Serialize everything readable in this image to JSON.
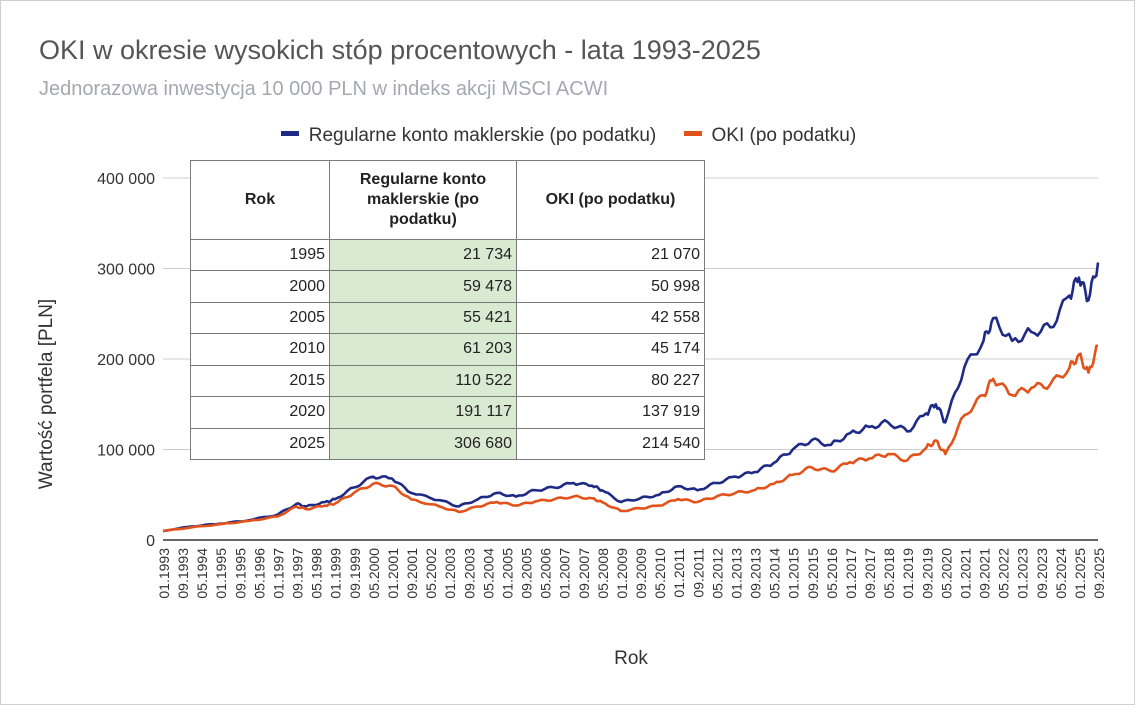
{
  "chart_data": {
    "type": "line",
    "title": "OKI w okresie wysokich stóp procentowych - lata 1993-2025",
    "subtitle": "Jednorazowa inwestycja 10 000 PLN w indeks akcji MSCI ACWI",
    "xlabel": "Rok",
    "ylabel": "Wartość portfela [PLN]",
    "ylim": [
      0,
      400000
    ],
    "y_ticks": [
      0,
      100000,
      200000,
      300000,
      400000
    ],
    "y_tick_labels": [
      "0",
      "100 000",
      "200 000",
      "300 000",
      "400 000"
    ],
    "x_tick_labels": [
      "01.1993",
      "09.1993",
      "05.1994",
      "01.1995",
      "09.1995",
      "05.1996",
      "01.1997",
      "09.1997",
      "05.1998",
      "01.1999",
      "09.1999",
      "05.2000",
      "01.2001",
      "09.2001",
      "05.2002",
      "01.2003",
      "09.2003",
      "05.2004",
      "01.2005",
      "09.2005",
      "05.2006",
      "01.2007",
      "09.2007",
      "05.2008",
      "01.2009",
      "09.2009",
      "05.2010",
      "01.2011",
      "09.2011",
      "05.2012",
      "01.2013",
      "09.2013",
      "05.2014",
      "01.2015",
      "09.2015",
      "05.2016",
      "01.2017",
      "09.2017",
      "05.2018",
      "01.2019",
      "09.2019",
      "05.2020",
      "01.2021",
      "09.2021",
      "05.2022",
      "01.2023",
      "09.2023",
      "05.2024",
      "01.2025",
      "09.2025"
    ],
    "grid": true,
    "legend_position": "top",
    "colors": {
      "regular": "#1f2a85",
      "oki": "#e2531c"
    },
    "series": [
      {
        "name": "Regularne konto maklerskie (po podatku)",
        "color": "#1f2a85",
        "points": [
          [
            "01.1993",
            10000
          ],
          [
            "01.1994",
            15000
          ],
          [
            "01.1995",
            18000
          ],
          [
            "01.1996",
            21734
          ],
          [
            "01.1997",
            28000
          ],
          [
            "09.1997",
            40000
          ],
          [
            "01.1998",
            37000
          ],
          [
            "09.1998",
            42000
          ],
          [
            "01.1999",
            45000
          ],
          [
            "09.1999",
            58000
          ],
          [
            "05.2000",
            70000
          ],
          [
            "01.2001",
            68000
          ],
          [
            "09.2001",
            52000
          ],
          [
            "09.2002",
            44000
          ],
          [
            "05.2003",
            37000
          ],
          [
            "01.2004",
            45000
          ],
          [
            "09.2004",
            52000
          ],
          [
            "05.2005",
            48000
          ],
          [
            "01.2006",
            55000
          ],
          [
            "09.2006",
            58000
          ],
          [
            "05.2007",
            63000
          ],
          [
            "01.2008",
            60000
          ],
          [
            "05.2008",
            55000
          ],
          [
            "01.2009",
            42000
          ],
          [
            "09.2009",
            46000
          ],
          [
            "05.2010",
            50000
          ],
          [
            "01.2011",
            59478
          ],
          [
            "09.2011",
            55000
          ],
          [
            "05.2012",
            63000
          ],
          [
            "01.2013",
            70000
          ],
          [
            "09.2013",
            75000
          ],
          [
            "05.2014",
            85000
          ],
          [
            "01.2015",
            100000
          ],
          [
            "09.2015",
            110522
          ],
          [
            "05.2016",
            105000
          ],
          [
            "01.2017",
            118000
          ],
          [
            "09.2017",
            125000
          ],
          [
            "05.2018",
            130000
          ],
          [
            "01.2019",
            120000
          ],
          [
            "09.2019",
            140000
          ],
          [
            "01.2020",
            150000
          ],
          [
            "05.2020",
            130000
          ],
          [
            "01.2021",
            191117
          ],
          [
            "09.2021",
            220000
          ],
          [
            "01.2022",
            245000
          ],
          [
            "09.2022",
            220000
          ],
          [
            "05.2023",
            230000
          ],
          [
            "01.2024",
            235000
          ],
          [
            "09.2024",
            270000
          ],
          [
            "01.2025",
            290000
          ],
          [
            "05.2025",
            265000
          ],
          [
            "09.2025",
            306680
          ]
        ]
      },
      {
        "name": "OKI (po podatku)",
        "color": "#e2531c",
        "points": [
          [
            "01.1993",
            10000
          ],
          [
            "01.1994",
            14000
          ],
          [
            "01.1995",
            17500
          ],
          [
            "01.1996",
            21070
          ],
          [
            "01.1997",
            26000
          ],
          [
            "09.1997",
            37000
          ],
          [
            "01.1998",
            34000
          ],
          [
            "09.1998",
            38000
          ],
          [
            "01.1999",
            40000
          ],
          [
            "09.1999",
            52000
          ],
          [
            "05.2000",
            62000
          ],
          [
            "01.2001",
            60000
          ],
          [
            "09.2001",
            45000
          ],
          [
            "09.2002",
            37000
          ],
          [
            "05.2003",
            31000
          ],
          [
            "01.2004",
            37000
          ],
          [
            "09.2004",
            42000
          ],
          [
            "05.2005",
            38000
          ],
          [
            "01.2006",
            42558
          ],
          [
            "09.2006",
            45000
          ],
          [
            "05.2007",
            48000
          ],
          [
            "01.2008",
            46000
          ],
          [
            "05.2008",
            42000
          ],
          [
            "01.2009",
            32000
          ],
          [
            "09.2009",
            35000
          ],
          [
            "05.2010",
            38000
          ],
          [
            "01.2011",
            45174
          ],
          [
            "09.2011",
            42000
          ],
          [
            "05.2012",
            48000
          ],
          [
            "01.2013",
            52000
          ],
          [
            "09.2013",
            55000
          ],
          [
            "05.2014",
            62000
          ],
          [
            "01.2015",
            72000
          ],
          [
            "09.2015",
            80227
          ],
          [
            "05.2016",
            76000
          ],
          [
            "01.2017",
            86000
          ],
          [
            "09.2017",
            90000
          ],
          [
            "05.2018",
            95000
          ],
          [
            "01.2019",
            88000
          ],
          [
            "09.2019",
            102000
          ],
          [
            "01.2020",
            110000
          ],
          [
            "05.2020",
            95000
          ],
          [
            "01.2021",
            137919
          ],
          [
            "09.2021",
            160000
          ],
          [
            "01.2022",
            178000
          ],
          [
            "09.2022",
            160000
          ],
          [
            "05.2023",
            168000
          ],
          [
            "01.2024",
            172000
          ],
          [
            "09.2024",
            190000
          ],
          [
            "01.2025",
            205000
          ],
          [
            "05.2025",
            185000
          ],
          [
            "09.2025",
            214540
          ]
        ]
      }
    ],
    "table": {
      "headers": [
        "Rok",
        "Regularne konto maklerskie (po podatku)",
        "OKI (po podatku)"
      ],
      "rows": [
        [
          "1995",
          "21 734",
          "21 070"
        ],
        [
          "2000",
          "59 478",
          "50 998"
        ],
        [
          "2005",
          "55 421",
          "42 558"
        ],
        [
          "2010",
          "61 203",
          "45 174"
        ],
        [
          "2015",
          "110 522",
          "80 227"
        ],
        [
          "2020",
          "191 117",
          "137 919"
        ],
        [
          "2025",
          "306 680",
          "214 540"
        ]
      ]
    }
  }
}
